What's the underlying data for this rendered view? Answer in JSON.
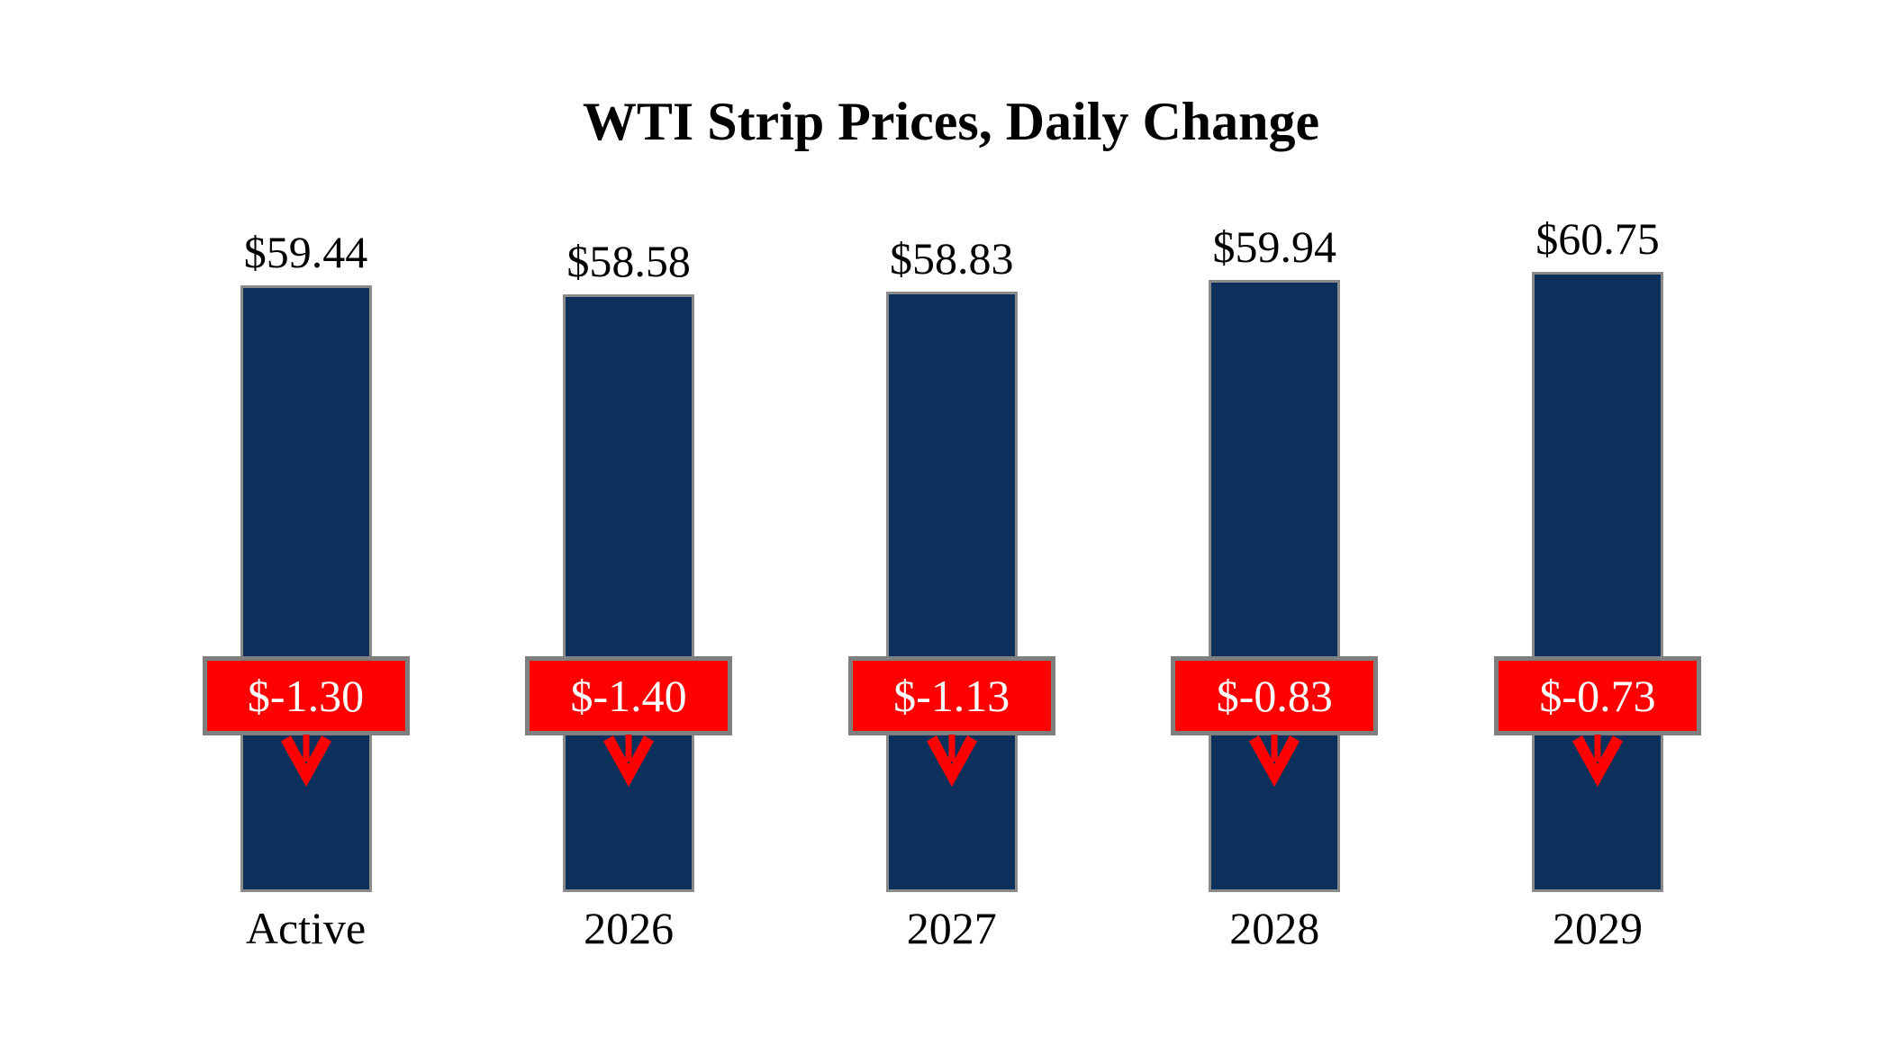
{
  "title": "WTI Strip Prices, Daily Change",
  "colors": {
    "background": "#FFFFFF",
    "bar_fill": "#0B305B",
    "bar_border": "#8A8A8A",
    "change_fill": "#FF0000",
    "change_border": "#7F7F7F",
    "change_text": "#FFFFFF",
    "arrow": "#FF0000",
    "text": "#000000"
  },
  "chart_data": {
    "type": "bar",
    "title": "WTI Strip Prices, Daily Change",
    "categories": [
      "Active",
      "2026",
      "2027",
      "2028",
      "2029"
    ],
    "series": [
      {
        "name": "Strip Price",
        "values": [
          59.44,
          58.58,
          58.83,
          59.94,
          60.75
        ],
        "labels": [
          "$59.44",
          "$58.58",
          "$58.83",
          "$59.94",
          "$60.75"
        ]
      },
      {
        "name": "Daily Change",
        "values": [
          -1.3,
          -1.4,
          -1.13,
          -0.83,
          -0.73
        ],
        "labels": [
          "$-1.30",
          "$-1.40",
          "$-1.13",
          "$-0.83",
          "$-0.73"
        ],
        "marker": "down-arrow"
      }
    ],
    "xlabel": "",
    "ylabel": "",
    "ylim": [
      0,
      66
    ],
    "grid": false,
    "legend": "none"
  }
}
